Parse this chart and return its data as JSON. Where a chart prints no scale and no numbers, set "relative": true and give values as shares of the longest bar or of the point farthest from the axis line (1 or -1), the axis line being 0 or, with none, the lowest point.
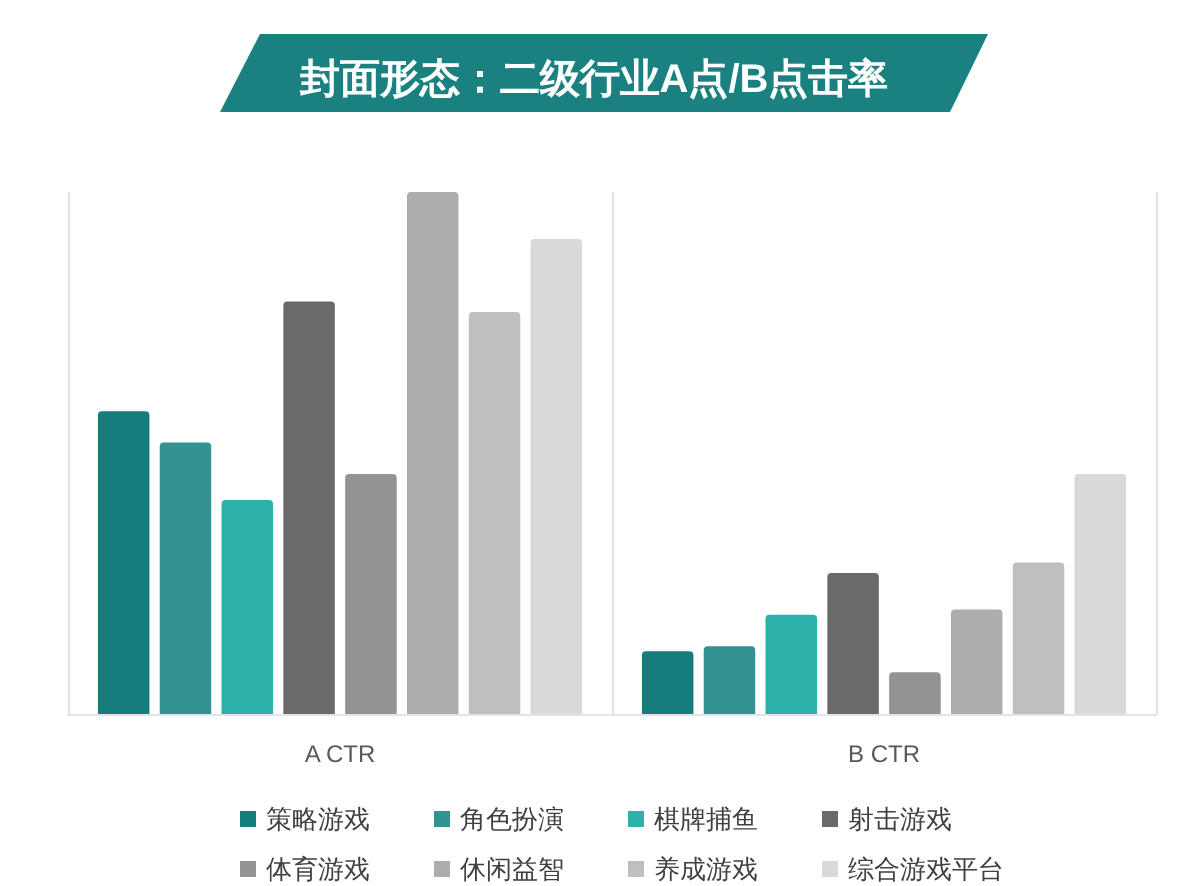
{
  "chart_data": {
    "type": "bar",
    "title": "封面形态：二级行业A点/B点击率",
    "categories": [
      "A CTR",
      "B CTR"
    ],
    "relative": true,
    "series": [
      {
        "name": "策略游戏",
        "color": "#157d7b",
        "values": [
          0.58,
          0.12
        ]
      },
      {
        "name": "角色扮演",
        "color": "#339393",
        "values": [
          0.52,
          0.13
        ]
      },
      {
        "name": "棋牌捕鱼",
        "color": "#2bb0aa",
        "values": [
          0.41,
          0.19
        ]
      },
      {
        "name": "射击游戏",
        "color": "#6a6a6a",
        "values": [
          0.79,
          0.27
        ]
      },
      {
        "name": "体育游戏",
        "color": "#939393",
        "values": [
          0.46,
          0.08
        ]
      },
      {
        "name": "休闲益智",
        "color": "#adadad",
        "values": [
          1,
          0.2
        ]
      },
      {
        "name": "养成游戏",
        "color": "#bfbfbf",
        "values": [
          0.77,
          0.29
        ]
      },
      {
        "name": "综合游戏平台",
        "color": "#d9d9d9",
        "values": [
          0.91,
          0.46
        ]
      }
    ],
    "legend": "bottom",
    "grid": "x"
  }
}
